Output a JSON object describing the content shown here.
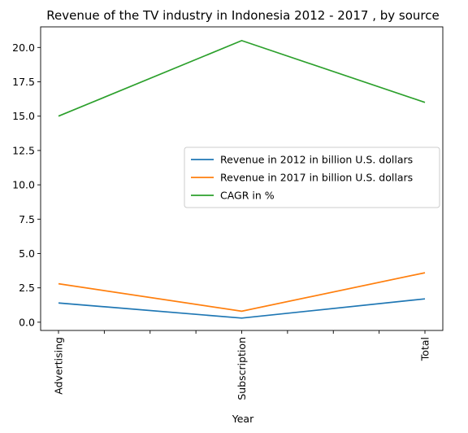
{
  "chart_data": {
    "type": "line",
    "title": "Revenue of the TV industry in Indonesia 2012 - 2017 , by source",
    "xlabel": "Year",
    "ylabel": "",
    "categories": [
      "Advertising",
      "Subscription",
      "Total"
    ],
    "y_ticks": [
      "0.0",
      "2.5",
      "5.0",
      "7.5",
      "10.0",
      "12.5",
      "15.0",
      "17.5",
      "20.0"
    ],
    "ylim": [
      -0.6,
      21.5
    ],
    "grid": false,
    "legend_position": "center-right",
    "series": [
      {
        "name": "Revenue in 2012 in billion U.S. dollars",
        "values": [
          1.4,
          0.3,
          1.7
        ],
        "color": "#1f77b4"
      },
      {
        "name": "Revenue in 2017 in billion U.S. dollars",
        "values": [
          2.8,
          0.8,
          3.6
        ],
        "color": "#ff7f0e"
      },
      {
        "name": "CAGR in %",
        "values": [
          15.0,
          20.5,
          16.0
        ],
        "color": "#2ca02c"
      }
    ]
  }
}
